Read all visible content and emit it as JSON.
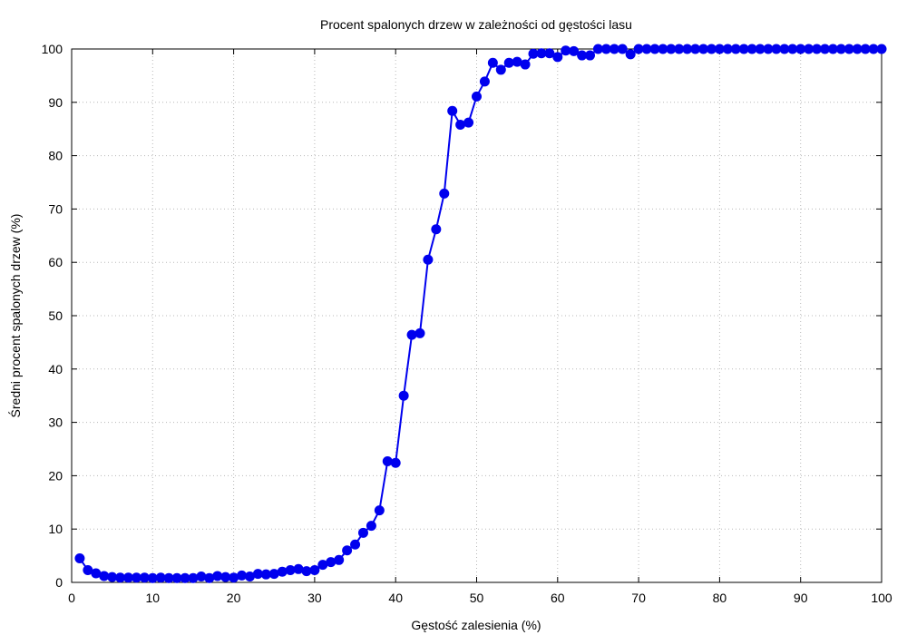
{
  "chart_data": {
    "type": "line",
    "title": "Procent spalonych drzew w zależności od gęstości lasu",
    "xlabel": "Gęstość zalesienia (%)",
    "ylabel": "Średni procent spalonych drzew (%)",
    "xlim": [
      0,
      100
    ],
    "ylim": [
      0,
      100
    ],
    "xticks": [
      "0",
      "10",
      "20",
      "30",
      "40",
      "50",
      "60",
      "70",
      "80",
      "90",
      "100"
    ],
    "yticks": [
      "0",
      "10",
      "20",
      "30",
      "40",
      "50",
      "60",
      "70",
      "80",
      "90",
      "100"
    ],
    "grid": true,
    "legend": "none",
    "series_color": "#0000ee",
    "x": [
      1,
      2,
      3,
      4,
      5,
      6,
      7,
      8,
      9,
      10,
      11,
      12,
      13,
      14,
      15,
      16,
      17,
      18,
      19,
      20,
      21,
      22,
      23,
      24,
      25,
      26,
      27,
      28,
      29,
      30,
      31,
      32,
      33,
      34,
      35,
      36,
      37,
      38,
      39,
      40,
      41,
      42,
      43,
      44,
      45,
      46,
      47,
      48,
      49,
      50,
      51,
      52,
      53,
      54,
      55,
      56,
      57,
      58,
      59,
      60,
      61,
      62,
      63,
      64,
      65,
      66,
      67,
      68,
      69,
      70,
      71,
      72,
      73,
      74,
      75,
      76,
      77,
      78,
      79,
      80,
      81,
      82,
      83,
      84,
      85,
      86,
      87,
      88,
      89,
      90,
      91,
      92,
      93,
      94,
      95,
      96,
      97,
      98,
      99,
      100
    ],
    "values": [
      4.5,
      2.3,
      1.7,
      1.2,
      1.0,
      0.9,
      0.9,
      0.9,
      0.9,
      0.8,
      0.9,
      0.8,
      0.8,
      0.8,
      0.8,
      1.1,
      0.8,
      1.2,
      1.0,
      0.9,
      1.3,
      1.1,
      1.6,
      1.5,
      1.6,
      2.0,
      2.3,
      2.5,
      2.1,
      2.3,
      3.3,
      3.8,
      4.2,
      6.0,
      7.1,
      9.3,
      10.6,
      13.5,
      22.7,
      22.4,
      35.0,
      46.4,
      46.7,
      60.5,
      66.2,
      72.9,
      88.4,
      85.8,
      86.2,
      91.1,
      93.9,
      97.4,
      96.1,
      97.4,
      97.6,
      97.1,
      99.1,
      99.2,
      99.2,
      98.5,
      99.7,
      99.6,
      98.8,
      98.8,
      100,
      100,
      100,
      100,
      99.0,
      100,
      100,
      100,
      100,
      100,
      100,
      100,
      100,
      100,
      100,
      100,
      100,
      100,
      100,
      100,
      100,
      100,
      100,
      100,
      100,
      100,
      100,
      100,
      100,
      100,
      100,
      100,
      100,
      100,
      100,
      100
    ]
  }
}
